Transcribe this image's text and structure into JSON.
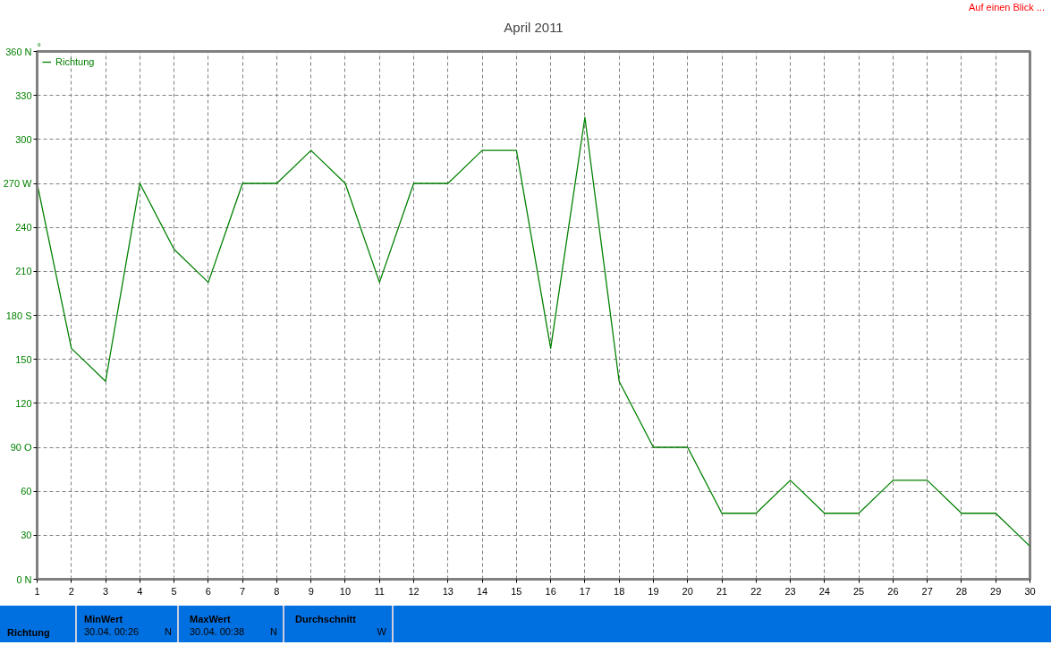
{
  "chart_data": {
    "type": "line",
    "title": "April 2011",
    "ylabel": "°",
    "x": [
      1,
      2,
      3,
      4,
      5,
      6,
      7,
      8,
      9,
      10,
      11,
      12,
      13,
      14,
      15,
      16,
      17,
      18,
      19,
      20,
      21,
      22,
      23,
      24,
      25,
      26,
      27,
      28,
      29,
      30
    ],
    "series": [
      {
        "name": "Richtung",
        "color": "#008000",
        "values": [
          270,
          157.5,
          135,
          270,
          225,
          202.5,
          270,
          270,
          292.5,
          270,
          202.5,
          270,
          270,
          292.5,
          292.5,
          157.5,
          315,
          135,
          90,
          90,
          45,
          45,
          67.5,
          45,
          45,
          67.5,
          67.5,
          45,
          45,
          22.5
        ]
      }
    ],
    "xlim": [
      1,
      30
    ],
    "xticks": [
      1,
      2,
      3,
      4,
      5,
      6,
      7,
      8,
      9,
      10,
      11,
      12,
      13,
      14,
      15,
      16,
      17,
      18,
      19,
      20,
      21,
      22,
      23,
      24,
      25,
      26,
      27,
      28,
      29,
      30
    ],
    "ylim": [
      0,
      360
    ],
    "yticks": [
      {
        "value": 0,
        "label": "0 N"
      },
      30,
      60,
      {
        "value": 90,
        "label": "90 O"
      },
      120,
      150,
      {
        "value": 180,
        "label": "180 S"
      },
      210,
      240,
      {
        "value": 270,
        "label": "270 W"
      },
      300,
      330,
      {
        "value": 360,
        "label": "360 N"
      }
    ],
    "grid": true,
    "legend": "top left",
    "line_style": "solid",
    "marker": "none",
    "annotations": [
      "Auf einen Blick ...",
      "Richtung",
      "MinWert",
      "30.04.  00:26",
      "N",
      "MaxWert",
      "30.04.  00:38",
      "N",
      "Durchschnitt",
      "W"
    ]
  }
}
